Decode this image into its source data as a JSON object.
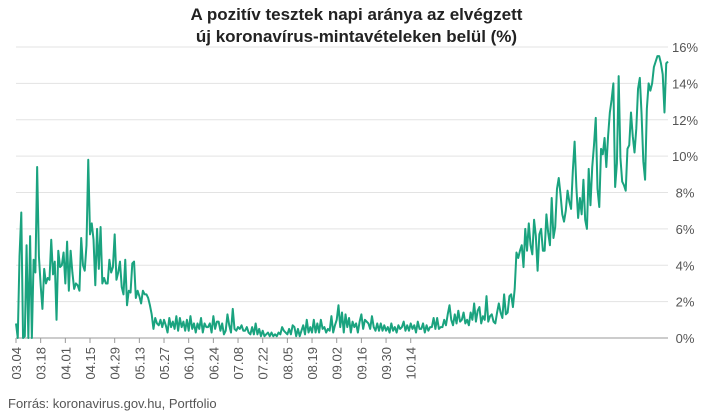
{
  "chart_data": {
    "type": "line",
    "title_line1": "A pozitív tesztek napi aránya az elvégzett",
    "title_line2": "új koronavírus-mintavételeken belül (%)",
    "source": "Forrás: koronavirus.gov.hu, Portfolio",
    "x_tick_labels": [
      "03.04",
      "03.18",
      "04.01",
      "04.15",
      "04.29",
      "05.13",
      "05.27",
      "06.10",
      "06.24",
      "07.08",
      "07.22",
      "08.05",
      "08.19",
      "09.02",
      "09.16",
      "09.30",
      "10.14"
    ],
    "y_tick_labels": [
      "0%",
      "2%",
      "4%",
      "6%",
      "8%",
      "10%",
      "12%",
      "14%",
      "16%"
    ],
    "ylim": [
      0,
      16
    ],
    "grid": true,
    "series_color": "#1aa37f",
    "series": [
      {
        "values": [
          0.8,
          0,
          4.5,
          6.9,
          0,
          0.1,
          5.1,
          0,
          5.6,
          0,
          4.3,
          3.6,
          9.4,
          4.5,
          2.9,
          1.6,
          3.8,
          3.0,
          3.3,
          3.2,
          5.4,
          3.5,
          4.2,
          1.0,
          4.8,
          3.9,
          4.0,
          4.7,
          3.0,
          5.3,
          2.6,
          4.8,
          3.6,
          2.7,
          3.0,
          2.9,
          2.6,
          5.5,
          4.0,
          3.7,
          5.1,
          9.8,
          5.7,
          6.3,
          5.4,
          2.9,
          6.0,
          3.8,
          6.1,
          3.0,
          3.3,
          3.0,
          3.0,
          4.3,
          3.6,
          3.9,
          5.7,
          3.2,
          3.6,
          4.2,
          2.8,
          2.4,
          4.3,
          1.8,
          2.6,
          2.5,
          4.1,
          4.2,
          2.2,
          2.6,
          2.3,
          1.9,
          2.6,
          2.4,
          2.4,
          2.2,
          1.8,
          1.3,
          0.5,
          1.1,
          0.8,
          0.7,
          1.0,
          0.6,
          1.0,
          0.7,
          0.3,
          1.1,
          0.6,
          0.9,
          0.5,
          1.2,
          0.4,
          1.1,
          0.6,
          0.9,
          0.4,
          1.0,
          0.4,
          1.2,
          0.5,
          0.8,
          0.3,
          0.8,
          0.5,
          1.1,
          0.3,
          0.8,
          0.6,
          0.6,
          0.8,
          0.3,
          1.2,
          0.5,
          0.9,
          0.9,
          0.4,
          0.8,
          0.2,
          0.4,
          1.3,
          0.7,
          0.3,
          1.6,
          0.5,
          0.4,
          0.6,
          0.5,
          0.7,
          0.4,
          0.4,
          0.6,
          0.3,
          0.2,
          0.6,
          0.2,
          0.8,
          0.2,
          0.5,
          0.1,
          0.4,
          0.1,
          0.2,
          0.3,
          0.1,
          0.3,
          0.1,
          0.2,
          0.1,
          0.3,
          0.2,
          0.6,
          0.4,
          0.3,
          0.2,
          0.5,
          0.2,
          0.7,
          0.6,
          0.1,
          0.5,
          0.1,
          0.4,
          0.7,
          0.2,
          1.0,
          0.3,
          0.6,
          0.3,
          1.0,
          0.3,
          0.8,
          0.3,
          1.0,
          0.5,
          0.6,
          0.3,
          0.5,
          0.4,
          1.2,
          0.3,
          0.7,
          1.0,
          1.8,
          0.6,
          1.4,
          0.3,
          1.3,
          0.6,
          1.1,
          0.3,
          0.9,
          0.6,
          0.8,
          0.3,
          0.9,
          1.3,
          0.5,
          1.0,
          0.9,
          0.8,
          0.5,
          1.2,
          0.6,
          0.4,
          0.8,
          0.4,
          0.8,
          0.4,
          0.7,
          0.4,
          0.6,
          0.3,
          0.8,
          0.4,
          0.6,
          0.3,
          0.7,
          0.5,
          0.6,
          0.9,
          0.4,
          0.7,
          0.4,
          0.8,
          0.5,
          0.7,
          0.3,
          0.9,
          0.5,
          0.5,
          0.8,
          0.3,
          0.7,
          0.4,
          0.6,
          0.6,
          1.1,
          0.5,
          1.1,
          0.5,
          0.6,
          0.6,
          1.0,
          0.7,
          1.3,
          1.8,
          1.0,
          0.7,
          1.3,
          0.8,
          1.5,
          0.9,
          1.0,
          1.4,
          0.8,
          1.0,
          0.7,
          1.4,
          1.0,
          1.9,
          0.9,
          1.5,
          1.7,
          0.8,
          1.2,
          1.0,
          2.3,
          0.9,
          1.2,
          1.3,
          0.9,
          0.8,
          1.4,
          1.9,
          1.4,
          1.1,
          2.4,
          1.3,
          1.4,
          2.3,
          2.4,
          1.7,
          2.7,
          4.7,
          4.4,
          4.8,
          5.1,
          3.9,
          6.0,
          4.8,
          6.3,
          5.1,
          4.6,
          6.5,
          5.6,
          3.7,
          5.7,
          6.0,
          4.8,
          4.8,
          6.8,
          5.8,
          5.1,
          7.7,
          5.5,
          6.1,
          8.2,
          8.8,
          7.9,
          6.8,
          6.4,
          7.0,
          8.1,
          7.5,
          7.1,
          9.2,
          10.8,
          8.3,
          6.6,
          7.7,
          6.8,
          8.7,
          6.5,
          6.0,
          9.3,
          7.3,
          9.4,
          10.6,
          12.1,
          8.2,
          7.2,
          10.4,
          10.1,
          11.0,
          9.4,
          11.1,
          12.4,
          13.1,
          14.0,
          8.3,
          9.6,
          14.4,
          9.9,
          8.6,
          8.4,
          8.1,
          10.4,
          10.6,
          12.4,
          11.1,
          10.2,
          11.5,
          13.7,
          14.3,
          12.3,
          9.7,
          8.7,
          12.6,
          14.0,
          13.6,
          14.0,
          14.9,
          15.2,
          15.5,
          15.5,
          15.1,
          14.5,
          12.4,
          15.1,
          15.2
        ]
      }
    ]
  }
}
